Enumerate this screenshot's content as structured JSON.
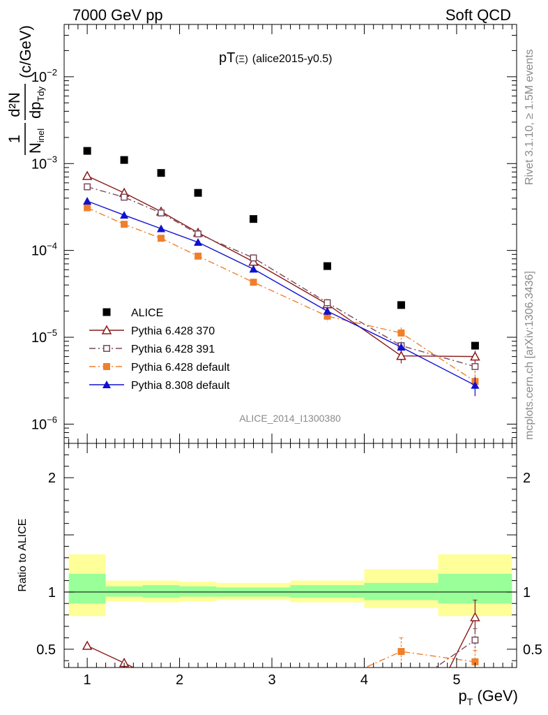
{
  "header": {
    "left": "7000 GeV pp",
    "right": "Soft QCD"
  },
  "side_labels": {
    "rivet": "Rivet 3.1.10, ≥ 1.5M events",
    "mcplots": "mcplots.cern.ch [arXiv:1306.3436]"
  },
  "chart_data": [
    {
      "type": "scatter",
      "title": "pT(Ξ) (alice2015-y0.5)",
      "title_main": "pT",
      "title_sym": "(Ξ)",
      "title_rest": "(alice2015-y0.5)",
      "watermark": "ALICE_2014_I1300380",
      "ylabel": {
        "frac_num": "1",
        "frac_den": "N",
        "frac_den_sub": "inel",
        "deriv_num": "d²N",
        "deriv_den": "dp",
        "deriv_den_sub": "Tdy",
        "units": "(c/GeV)"
      },
      "xlim": [
        0.75,
        5.65
      ],
      "ylim": [
        6e-07,
        0.04
      ],
      "yscale": "log",
      "y_ticks": [
        {
          "value": 1e-06,
          "label_base": "10",
          "label_exp": "−6"
        },
        {
          "value": 1e-05,
          "label_base": "10",
          "label_exp": "−5"
        },
        {
          "value": 0.0001,
          "label_base": "10",
          "label_exp": "−4"
        },
        {
          "value": 0.001,
          "label_base": "10",
          "label_exp": "−3"
        },
        {
          "value": 0.01,
          "label_base": "10",
          "label_exp": "−2"
        }
      ],
      "legend_position": "bottom-left",
      "series": [
        {
          "name": "ALICE",
          "color": "#000000",
          "marker": "square-filled",
          "line": "none",
          "x": [
            1.0,
            1.4,
            1.8,
            2.2,
            2.8,
            3.6,
            4.4,
            5.2
          ],
          "y": [
            0.0014,
            0.0011,
            0.00078,
            0.00046,
            0.00023,
            6.6e-05,
            2.35e-05,
            8e-06
          ]
        },
        {
          "name": "Pythia 6.428 370",
          "color": "#8b1a1a",
          "marker": "triangle-open",
          "line": "solid",
          "x": [
            1.0,
            1.4,
            1.8,
            2.2,
            2.8,
            3.6,
            4.4,
            5.2
          ],
          "y": [
            0.00072,
            0.00046,
            0.00028,
            0.00016,
            7.4e-05,
            2.4e-05,
            6.1e-06,
            6e-06
          ],
          "err": [
            3e-05,
            2e-05,
            1.5e-05,
            1e-05,
            5e-06,
            2.5e-06,
            1.1e-06,
            1e-06
          ]
        },
        {
          "name": "Pythia 6.428 391",
          "color": "#7a4a5a",
          "marker": "square-open",
          "line": "dashdot",
          "x": [
            1.0,
            1.4,
            1.8,
            2.2,
            2.8,
            3.6,
            4.4,
            5.2
          ],
          "y": [
            0.00054,
            0.00041,
            0.00027,
            0.000155,
            8.2e-05,
            2.5e-05,
            8e-06,
            4.6e-06
          ],
          "err": [
            2.5e-05,
            2e-05,
            1.2e-05,
            8e-06,
            5e-06,
            2.5e-06,
            9e-07,
            8e-07
          ]
        },
        {
          "name": "Pythia 6.428 default",
          "color": "#f07f2a",
          "marker": "square-filled",
          "line": "dashdot",
          "x": [
            1.0,
            1.4,
            1.8,
            2.2,
            2.8,
            3.6,
            4.4,
            5.2
          ],
          "y": [
            0.00031,
            0.0002,
            0.000138,
            8.6e-05,
            4.3e-05,
            1.75e-05,
            1.12e-05,
            3.1e-06
          ],
          "err": [
            1.5e-05,
            1e-05,
            8e-06,
            7e-06,
            4e-06,
            2.5e-06,
            1.8e-06,
            1e-06
          ]
        },
        {
          "name": "Pythia 8.308 default",
          "color": "#1010d0",
          "marker": "triangle-filled",
          "line": "solid",
          "x": [
            1.0,
            1.4,
            1.8,
            2.2,
            2.8,
            3.6,
            4.4,
            5.2
          ],
          "y": [
            0.00037,
            0.000255,
            0.000178,
            0.000124,
            6.1e-05,
            2e-05,
            7.7e-06,
            2.8e-06
          ],
          "err": [
            1.5e-05,
            1e-05,
            8e-06,
            6e-06,
            4e-06,
            2e-06,
            9e-07,
            7e-07
          ]
        }
      ]
    },
    {
      "type": "scatter",
      "ylabel": "Ratio to ALICE",
      "xlabel_main": "p",
      "xlabel_sub": "T",
      "xlabel_units": "(GeV)",
      "xlim": [
        0.75,
        5.65
      ],
      "ylim": [
        0.34,
        2.3
      ],
      "x_ticks": [
        "1",
        "2",
        "3",
        "4",
        "5"
      ],
      "y_ticks_left": [
        "0.5",
        "1",
        "2"
      ],
      "y_ticks_right": [
        "0.5",
        "1",
        "2"
      ],
      "reference_line": 1,
      "bands": [
        {
          "x0": 0.8,
          "x1": 1.2,
          "yellow": [
            0.79,
            1.33
          ],
          "green": [
            0.9,
            1.16
          ]
        },
        {
          "x0": 1.2,
          "x1": 1.6,
          "yellow": [
            0.92,
            1.1
          ],
          "green": [
            0.96,
            1.05
          ]
        },
        {
          "x0": 1.6,
          "x1": 2.0,
          "yellow": [
            0.91,
            1.1
          ],
          "green": [
            0.95,
            1.06
          ]
        },
        {
          "x0": 2.0,
          "x1": 2.4,
          "yellow": [
            0.92,
            1.09
          ],
          "green": [
            0.96,
            1.05
          ]
        },
        {
          "x0": 2.4,
          "x1": 3.2,
          "yellow": [
            0.93,
            1.08
          ],
          "green": [
            0.96,
            1.04
          ]
        },
        {
          "x0": 3.2,
          "x1": 4.0,
          "yellow": [
            0.91,
            1.1
          ],
          "green": [
            0.95,
            1.06
          ]
        },
        {
          "x0": 4.0,
          "x1": 4.8,
          "yellow": [
            0.86,
            1.2
          ],
          "green": [
            0.93,
            1.08
          ]
        },
        {
          "x0": 4.8,
          "x1": 5.6,
          "yellow": [
            0.79,
            1.33
          ],
          "green": [
            0.9,
            1.16
          ]
        }
      ],
      "series": [
        {
          "name": "Pythia 6.428 370",
          "color": "#8b1a1a",
          "marker": "triangle-open",
          "line": "solid",
          "x": [
            1.0,
            1.4,
            1.6,
            4.9,
            5.2
          ],
          "y": [
            0.53,
            0.38,
            0.3,
            0.3,
            0.78
          ],
          "show_marker": [
            true,
            true,
            false,
            false,
            true
          ],
          "err": [
            0,
            0,
            0,
            0,
            0.15
          ]
        },
        {
          "name": "Pythia 6.428 391",
          "color": "#7a4a5a",
          "marker": "square-open",
          "line": "dashdot",
          "x": [
            4.7,
            5.2
          ],
          "y": [
            0.3,
            0.58
          ],
          "show_marker": [
            false,
            true
          ],
          "err": [
            0,
            0.1
          ]
        },
        {
          "name": "Pythia 6.428 default",
          "color": "#f07f2a",
          "marker": "square-filled",
          "line": "dashdot",
          "x": [
            3.9,
            4.4,
            5.2
          ],
          "y": [
            0.3,
            0.48,
            0.39
          ],
          "show_marker": [
            false,
            true,
            true
          ],
          "err": [
            0,
            0.12,
            0.1
          ]
        }
      ]
    }
  ]
}
